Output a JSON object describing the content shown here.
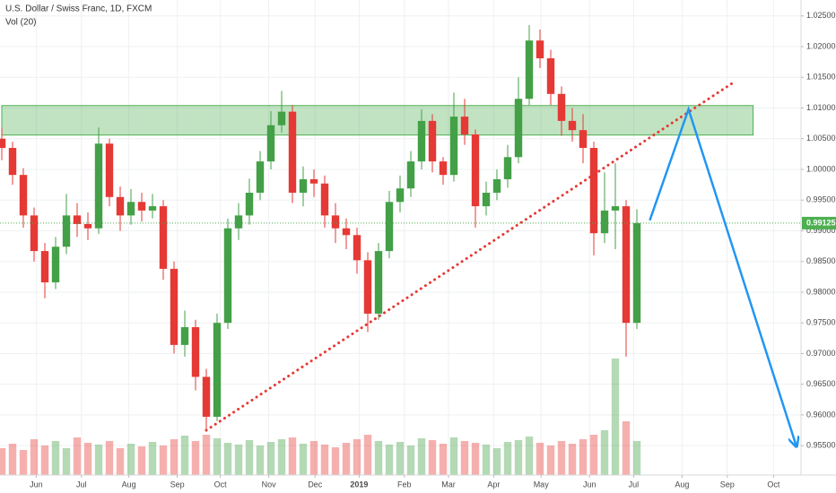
{
  "chart_data": {
    "type": "candlestick",
    "title": "U.S. Dollar / Swiss Franc, 1D, FXCM",
    "subtitle": "Vol (20)",
    "x": [
      0,
      1,
      2,
      3,
      4,
      5,
      6,
      7,
      8,
      9,
      10,
      11,
      12,
      13,
      14,
      15,
      16,
      17,
      18,
      19,
      20,
      21,
      22,
      23,
      24,
      25,
      26,
      27,
      28,
      29,
      30,
      31,
      32,
      33,
      34,
      35,
      36,
      37,
      38,
      39,
      40,
      41,
      42,
      43,
      44,
      45,
      46,
      47,
      48,
      49,
      50,
      51,
      52,
      53,
      54,
      55,
      56,
      57,
      58,
      59
    ],
    "open": [
      1.005,
      1.0035,
      0.9991,
      0.9925,
      0.9867,
      0.9816,
      0.9874,
      0.9925,
      0.9911,
      0.9904,
      1.0042,
      0.9955,
      0.9925,
      0.9947,
      0.9933,
      0.994,
      0.9838,
      0.9714,
      0.9743,
      0.9662,
      0.9597,
      0.975,
      0.9904,
      0.9925,
      0.9962,
      1.0013,
      1.0072,
      1.0094,
      0.9962,
      0.9984,
      0.9977,
      0.9925,
      0.9904,
      0.9893,
      0.9852,
      0.9765,
      0.9867,
      0.9947,
      0.9969,
      1.0013,
      1.0079,
      1.0013,
      0.9991,
      1.0086,
      1.0057,
      0.994,
      0.9962,
      0.9984,
      1.002,
      1.0115,
      1.021,
      1.0181,
      1.0123,
      1.0079,
      1.0064,
      1.0035,
      0.9896,
      0.9933,
      0.994,
      0.975
    ],
    "high": [
      1.0068,
      1.0045,
      1.0002,
      0.9938,
      0.988,
      0.989,
      0.996,
      0.9945,
      0.993,
      1.0068,
      1.005,
      0.9972,
      0.9968,
      0.9962,
      0.996,
      0.995,
      0.985,
      0.977,
      0.9755,
      0.9675,
      0.9765,
      0.992,
      0.9945,
      0.9985,
      1.003,
      1.0095,
      1.0128,
      1.0105,
      1.0005,
      1.0,
      0.999,
      0.9945,
      0.992,
      0.9905,
      0.9865,
      0.988,
      0.9965,
      0.999,
      1.003,
      1.0098,
      1.009,
      1.002,
      1.0125,
      1.0115,
      1.0065,
      0.998,
      1.0,
      1.004,
      1.015,
      1.0235,
      1.0228,
      1.0195,
      1.0135,
      1.01,
      1.009,
      1.0045,
      0.9995,
      1.001,
      0.995,
      0.9935
    ],
    "low": [
      1.0015,
      0.9975,
      0.9905,
      0.985,
      0.979,
      0.9805,
      0.9862,
      0.989,
      0.9885,
      0.9895,
      0.994,
      0.99,
      0.991,
      0.9915,
      0.992,
      0.982,
      0.97,
      0.9695,
      0.964,
      0.9575,
      0.959,
      0.974,
      0.9885,
      0.991,
      0.995,
      1.0,
      1.006,
      0.9945,
      0.994,
      0.9955,
      0.9905,
      0.988,
      0.987,
      0.983,
      0.9735,
      0.9755,
      0.9855,
      0.993,
      0.9955,
      1.0,
      0.9995,
      0.9975,
      0.998,
      1.004,
      0.9905,
      0.9925,
      0.995,
      0.997,
      1.001,
      1.0105,
      1.0165,
      1.0105,
      1.0055,
      1.0045,
      1.001,
      0.986,
      0.988,
      0.987,
      0.9695,
      0.974
    ],
    "close": [
      1.0035,
      0.9991,
      0.9925,
      0.9867,
      0.9816,
      0.9874,
      0.9925,
      0.9911,
      0.9904,
      1.0042,
      0.9955,
      0.9925,
      0.9947,
      0.9933,
      0.994,
      0.9838,
      0.9714,
      0.9743,
      0.9662,
      0.9597,
      0.975,
      0.9904,
      0.9925,
      0.9962,
      1.0013,
      1.0072,
      1.0094,
      0.9962,
      0.9984,
      0.9977,
      0.9925,
      0.9904,
      0.9893,
      0.9852,
      0.9765,
      0.9867,
      0.9947,
      0.9969,
      1.0013,
      1.0079,
      1.0013,
      0.9991,
      1.0086,
      1.0057,
      0.994,
      0.9962,
      0.9984,
      1.002,
      1.0115,
      1.021,
      1.0181,
      1.0123,
      1.0079,
      1.0064,
      1.0035,
      0.9896,
      0.9933,
      0.994,
      0.975,
      0.99125
    ],
    "volume": [
      30,
      35,
      28,
      40,
      33,
      38,
      30,
      42,
      36,
      34,
      38,
      30,
      35,
      32,
      37,
      33,
      40,
      44,
      38,
      45,
      41,
      36,
      34,
      39,
      33,
      37,
      40,
      42,
      35,
      38,
      34,
      31,
      36,
      40,
      45,
      38,
      34,
      37,
      33,
      41,
      39,
      35,
      42,
      38,
      36,
      34,
      30,
      37,
      39,
      43,
      36,
      33,
      38,
      35,
      40,
      45,
      50,
      130,
      60,
      38
    ],
    "up_color": "#43a047",
    "down_color": "#e53935",
    "xlim": [
      0,
      74
    ],
    "xticks": [
      {
        "value": 3.2,
        "label": "Jun"
      },
      {
        "value": 7.4,
        "label": "Jul"
      },
      {
        "value": 11.8,
        "label": "Aug"
      },
      {
        "value": 16.3,
        "label": "Sep"
      },
      {
        "value": 20.3,
        "label": "Oct"
      },
      {
        "value": 24.8,
        "label": "Nov"
      },
      {
        "value": 29.1,
        "label": "Dec"
      },
      {
        "value": 33.2,
        "label": "2019"
      },
      {
        "value": 37.4,
        "label": "Feb"
      },
      {
        "value": 41.5,
        "label": "Mar"
      },
      {
        "value": 45.7,
        "label": "Apr"
      },
      {
        "value": 50.1,
        "label": "May"
      },
      {
        "value": 54.6,
        "label": "Jun"
      },
      {
        "value": 58.7,
        "label": "Jul"
      },
      {
        "value": 63.2,
        "label": "Aug"
      },
      {
        "value": 67.4,
        "label": "Sep"
      },
      {
        "value": 71.7,
        "label": "Oct"
      }
    ],
    "ylim": [
      0.9502,
      1.0276
    ],
    "yticks": [
      {
        "value": 0.955,
        "label": "0.95500"
      },
      {
        "value": 0.96,
        "label": "0.96000"
      },
      {
        "value": 0.965,
        "label": "0.96500"
      },
      {
        "value": 0.97,
        "label": "0.97000"
      },
      {
        "value": 0.975,
        "label": "0.97500"
      },
      {
        "value": 0.98,
        "label": "0.98000"
      },
      {
        "value": 0.985,
        "label": "0.98500"
      },
      {
        "value": 0.99,
        "label": "0.99000"
      },
      {
        "value": 0.995,
        "label": "0.99500"
      },
      {
        "value": 1.0,
        "label": "1.00000"
      },
      {
        "value": 1.005,
        "label": "1.00500"
      },
      {
        "value": 1.01,
        "label": "1.01000"
      },
      {
        "value": 1.015,
        "label": "1.01500"
      },
      {
        "value": 1.02,
        "label": "1.02000"
      },
      {
        "value": 1.025,
        "label": "1.02500"
      }
    ],
    "volume_ylim": [
      0,
      140
    ],
    "grid": true,
    "price_line": {
      "value": 0.99125,
      "label": "0.99125",
      "color": "#4caf50"
    },
    "zone": {
      "x": [
        0,
        69.8
      ],
      "y": [
        1.0056,
        1.0104
      ],
      "color": "#4caf50"
    },
    "trendline": {
      "x": [
        19.0,
        68.0
      ],
      "y": [
        0.9575,
        1.0142
      ],
      "color": "#e53935"
    },
    "arrow": {
      "x": [
        60.2,
        63.8,
        73.8
      ],
      "y": [
        0.9917,
        1.0098,
        0.955
      ],
      "color": "#2196f3"
    }
  }
}
